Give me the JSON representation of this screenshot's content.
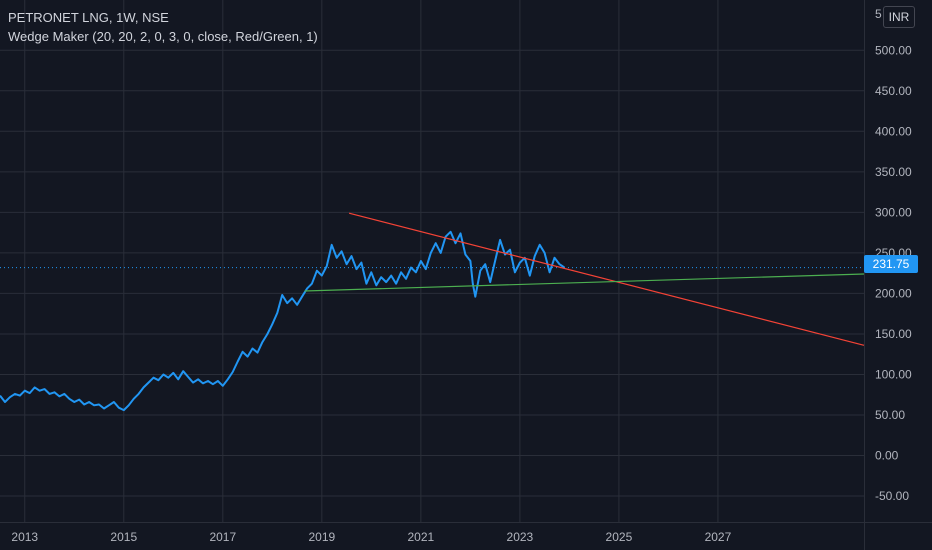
{
  "legend": {
    "symbol": "PETRONET LNG, 1W, NSE",
    "indicator": "Wedge Maker (20, 20, 2, 0, 3, 0, close, Red/Green, 1)"
  },
  "currency_label": "INR",
  "last_price_label": "231.75",
  "colors": {
    "background": "#131722",
    "grid": "#2a2e39",
    "price_line": "#2196f3",
    "upper_trendline": "#f44336",
    "lower_trendline": "#4caf50",
    "axis_text": "#b2b5be"
  },
  "chart_data": {
    "type": "line",
    "x_unit": "year",
    "series": [
      {
        "values": [
          [
            2012.5,
            74
          ],
          [
            2012.6,
            66
          ],
          [
            2012.7,
            72
          ],
          [
            2012.8,
            76
          ],
          [
            2012.9,
            74
          ],
          [
            2013.0,
            80
          ],
          [
            2013.1,
            77
          ],
          [
            2013.2,
            84
          ],
          [
            2013.3,
            80
          ],
          [
            2013.4,
            82
          ],
          [
            2013.5,
            76
          ],
          [
            2013.6,
            78
          ],
          [
            2013.7,
            73
          ],
          [
            2013.8,
            76
          ],
          [
            2013.9,
            70
          ],
          [
            2014.0,
            66
          ],
          [
            2014.1,
            69
          ],
          [
            2014.2,
            63
          ],
          [
            2014.3,
            66
          ],
          [
            2014.4,
            62
          ],
          [
            2014.5,
            63
          ],
          [
            2014.6,
            58
          ],
          [
            2014.7,
            62
          ],
          [
            2014.8,
            66
          ],
          [
            2014.9,
            59
          ],
          [
            2015.0,
            56
          ],
          [
            2015.1,
            62
          ],
          [
            2015.2,
            70
          ],
          [
            2015.3,
            76
          ],
          [
            2015.4,
            84
          ],
          [
            2015.5,
            90
          ],
          [
            2015.6,
            96
          ],
          [
            2015.7,
            93
          ],
          [
            2015.8,
            100
          ],
          [
            2015.9,
            96
          ],
          [
            2016.0,
            102
          ],
          [
            2016.1,
            94
          ],
          [
            2016.2,
            104
          ],
          [
            2016.3,
            97
          ],
          [
            2016.4,
            90
          ],
          [
            2016.5,
            94
          ],
          [
            2016.6,
            89
          ],
          [
            2016.7,
            92
          ],
          [
            2016.8,
            88
          ],
          [
            2016.9,
            92
          ],
          [
            2017.0,
            86
          ],
          [
            2017.1,
            94
          ],
          [
            2017.2,
            103
          ],
          [
            2017.3,
            116
          ],
          [
            2017.4,
            128
          ],
          [
            2017.5,
            122
          ],
          [
            2017.6,
            132
          ],
          [
            2017.7,
            127
          ],
          [
            2017.8,
            140
          ],
          [
            2017.9,
            150
          ],
          [
            2018.0,
            162
          ],
          [
            2018.1,
            176
          ],
          [
            2018.2,
            198
          ],
          [
            2018.3,
            188
          ],
          [
            2018.4,
            194
          ],
          [
            2018.5,
            186
          ],
          [
            2018.6,
            196
          ],
          [
            2018.7,
            206
          ],
          [
            2018.8,
            212
          ],
          [
            2018.9,
            228
          ],
          [
            2019.0,
            222
          ],
          [
            2019.1,
            234
          ],
          [
            2019.2,
            260
          ],
          [
            2019.3,
            244
          ],
          [
            2019.4,
            252
          ],
          [
            2019.5,
            236
          ],
          [
            2019.6,
            246
          ],
          [
            2019.7,
            230
          ],
          [
            2019.8,
            238
          ],
          [
            2019.9,
            212
          ],
          [
            2020.0,
            226
          ],
          [
            2020.1,
            210
          ],
          [
            2020.2,
            220
          ],
          [
            2020.3,
            214
          ],
          [
            2020.4,
            222
          ],
          [
            2020.5,
            212
          ],
          [
            2020.6,
            226
          ],
          [
            2020.7,
            218
          ],
          [
            2020.8,
            232
          ],
          [
            2020.9,
            226
          ],
          [
            2021.0,
            240
          ],
          [
            2021.1,
            230
          ],
          [
            2021.2,
            250
          ],
          [
            2021.3,
            262
          ],
          [
            2021.4,
            250
          ],
          [
            2021.5,
            270
          ],
          [
            2021.6,
            276
          ],
          [
            2021.7,
            262
          ],
          [
            2021.8,
            274
          ],
          [
            2021.9,
            248
          ],
          [
            2022.0,
            240
          ],
          [
            2022.05,
            212
          ],
          [
            2022.1,
            196
          ],
          [
            2022.2,
            228
          ],
          [
            2022.3,
            236
          ],
          [
            2022.4,
            214
          ],
          [
            2022.5,
            240
          ],
          [
            2022.6,
            266
          ],
          [
            2022.7,
            248
          ],
          [
            2022.8,
            254
          ],
          [
            2022.9,
            226
          ],
          [
            2023.0,
            238
          ],
          [
            2023.1,
            244
          ],
          [
            2023.2,
            222
          ],
          [
            2023.3,
            246
          ],
          [
            2023.4,
            260
          ],
          [
            2023.5,
            250
          ],
          [
            2023.6,
            226
          ],
          [
            2023.7,
            244
          ],
          [
            2023.8,
            236
          ],
          [
            2023.9,
            232
          ]
        ]
      },
      {
        "name": "upper",
        "values": [
          [
            2019.55,
            299
          ],
          [
            2029.95,
            136
          ]
        ]
      },
      {
        "name": "lower",
        "values": [
          [
            2018.65,
            203
          ],
          [
            2029.95,
            224
          ]
        ]
      }
    ],
    "x_ticks": [
      "2013",
      "2015",
      "2017",
      "2019",
      "2021",
      "2023",
      "2025",
      "2027"
    ],
    "y_ticks": [
      "500.00",
      "450.00",
      "400.00",
      "350.00",
      "300.00",
      "250.00",
      "200.00",
      "150.00",
      "100.00",
      "50.00",
      "0.00",
      "-50.00"
    ],
    "y_top_partial_label": "5",
    "xlim": [
      2012.5,
      2029.95
    ],
    "ylim": [
      -82,
      562
    ],
    "last_value": 231.75,
    "grid": true
  }
}
